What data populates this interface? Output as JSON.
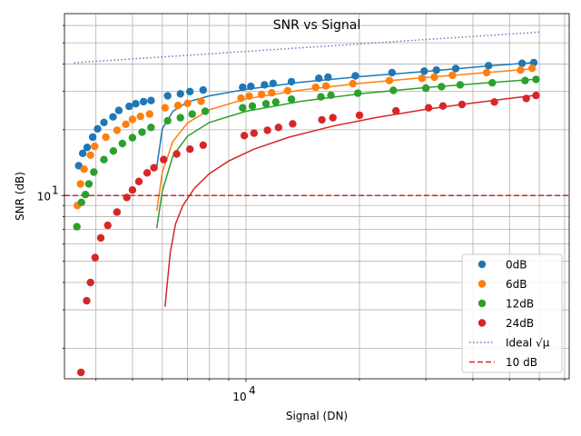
{
  "chart_data": {
    "type": "scatter",
    "title": "SNR vs Signal",
    "xlabel": "Signal (DN)",
    "ylabel": "SNR (dB)",
    "x_scale": "log",
    "y_scale": "log",
    "xlim": [
      3300,
      72000
    ],
    "ylim": [
      1.45,
      68
    ],
    "grid": true,
    "legend_placement": "lower-right",
    "x_tick_labels": [
      {
        "value": 10000,
        "label": "10",
        "exponent": "4"
      }
    ],
    "y_tick_labels": [
      {
        "value": 10,
        "label": "10",
        "exponent": "1"
      }
    ],
    "series": [
      {
        "name": "0dB",
        "color": "#1f77b4",
        "points": [
          [
            3600,
            13.7
          ],
          [
            3690,
            15.6
          ],
          [
            3790,
            16.6
          ],
          [
            3920,
            18.5
          ],
          [
            4040,
            20.2
          ],
          [
            4200,
            21.6
          ],
          [
            4440,
            22.9
          ],
          [
            4600,
            24.5
          ],
          [
            4900,
            25.6
          ],
          [
            5100,
            26.3
          ],
          [
            5350,
            26.9
          ],
          [
            5600,
            27.2
          ],
          [
            6200,
            28.6
          ],
          [
            6700,
            29.2
          ],
          [
            7100,
            29.9
          ],
          [
            7700,
            30.4
          ],
          [
            9800,
            31.3
          ],
          [
            10300,
            31.6
          ],
          [
            11200,
            32.1
          ],
          [
            11800,
            32.6
          ],
          [
            13200,
            33.2
          ],
          [
            15600,
            34.4
          ],
          [
            16500,
            34.8
          ],
          [
            19500,
            35.3
          ],
          [
            24400,
            36.5
          ],
          [
            29700,
            37.1
          ],
          [
            32000,
            37.5
          ],
          [
            36000,
            38.1
          ],
          [
            44000,
            39.3
          ],
          [
            54000,
            40.3
          ],
          [
            58000,
            40.6
          ]
        ],
        "fit": [
          [
            5800,
            13.5
          ],
          [
            6000,
            20.2
          ],
          [
            6400,
            24.3
          ],
          [
            7000,
            26.8
          ],
          [
            8000,
            28.6
          ],
          [
            10000,
            30.6
          ],
          [
            14000,
            33.0
          ],
          [
            20000,
            35.0
          ],
          [
            30000,
            37.0
          ],
          [
            45000,
            39.3
          ],
          [
            58000,
            40.6
          ]
        ]
      },
      {
        "name": "6dB",
        "color": "#ff7f0e",
        "points": [
          [
            3570,
            9.0
          ],
          [
            3640,
            11.3
          ],
          [
            3720,
            13.2
          ],
          [
            3870,
            15.3
          ],
          [
            3970,
            16.8
          ],
          [
            4250,
            18.5
          ],
          [
            4550,
            19.9
          ],
          [
            4800,
            21.2
          ],
          [
            5000,
            22.3
          ],
          [
            5250,
            23.0
          ],
          [
            5550,
            23.6
          ],
          [
            6100,
            25.2
          ],
          [
            6600,
            25.8
          ],
          [
            7000,
            26.4
          ],
          [
            7600,
            27.0
          ],
          [
            9700,
            27.9
          ],
          [
            10200,
            28.5
          ],
          [
            11000,
            29.0
          ],
          [
            11700,
            29.5
          ],
          [
            12900,
            30.2
          ],
          [
            15300,
            31.3
          ],
          [
            16300,
            31.7
          ],
          [
            19200,
            32.5
          ],
          [
            24000,
            33.6
          ],
          [
            29300,
            34.4
          ],
          [
            31600,
            34.8
          ],
          [
            35300,
            35.5
          ],
          [
            43500,
            36.5
          ],
          [
            53500,
            37.5
          ],
          [
            57400,
            38.2
          ]
        ],
        "fit": [
          [
            5800,
            8.5
          ],
          [
            6000,
            12.8
          ],
          [
            6400,
            17.7
          ],
          [
            7000,
            21.5
          ],
          [
            8000,
            24.7
          ],
          [
            10000,
            27.7
          ],
          [
            14000,
            30.4
          ],
          [
            20000,
            32.6
          ],
          [
            30000,
            34.7
          ],
          [
            45000,
            36.7
          ],
          [
            58000,
            38.0
          ]
        ]
      },
      {
        "name": "12dB",
        "color": "#2ca02c",
        "points": [
          [
            3560,
            7.2
          ],
          [
            3660,
            9.3
          ],
          [
            3750,
            10.1
          ],
          [
            3830,
            11.3
          ],
          [
            3950,
            12.8
          ],
          [
            4200,
            14.6
          ],
          [
            4450,
            16.0
          ],
          [
            4700,
            17.3
          ],
          [
            5000,
            18.4
          ],
          [
            5300,
            19.5
          ],
          [
            5600,
            20.5
          ],
          [
            6200,
            22.0
          ],
          [
            6700,
            22.7
          ],
          [
            7200,
            23.6
          ],
          [
            7800,
            24.3
          ],
          [
            9800,
            25.2
          ],
          [
            10400,
            25.7
          ],
          [
            11300,
            26.3
          ],
          [
            12000,
            26.8
          ],
          [
            13200,
            27.6
          ],
          [
            15800,
            28.3
          ],
          [
            16800,
            28.8
          ],
          [
            19800,
            29.4
          ],
          [
            24600,
            30.3
          ],
          [
            30000,
            31.0
          ],
          [
            33000,
            31.5
          ],
          [
            37000,
            32.1
          ],
          [
            45000,
            32.8
          ],
          [
            55000,
            33.6
          ],
          [
            58800,
            34.0
          ]
        ],
        "fit": [
          [
            5800,
            7.1
          ],
          [
            6000,
            10.5
          ],
          [
            6400,
            15.2
          ],
          [
            7000,
            18.7
          ],
          [
            8000,
            21.6
          ],
          [
            10000,
            24.3
          ],
          [
            14000,
            27.0
          ],
          [
            20000,
            29.2
          ],
          [
            30000,
            31.2
          ],
          [
            45000,
            32.9
          ],
          [
            58000,
            34.0
          ]
        ]
      },
      {
        "name": "24dB",
        "color": "#d62728",
        "points": [
          [
            3650,
            1.55
          ],
          [
            3780,
            3.3
          ],
          [
            3870,
            4.0
          ],
          [
            3980,
            5.2
          ],
          [
            4120,
            6.4
          ],
          [
            4300,
            7.3
          ],
          [
            4550,
            8.4
          ],
          [
            4830,
            9.8
          ],
          [
            5000,
            10.6
          ],
          [
            5200,
            11.6
          ],
          [
            5470,
            12.7
          ],
          [
            5700,
            13.4
          ],
          [
            6050,
            14.6
          ],
          [
            6550,
            15.5
          ],
          [
            7100,
            16.3
          ],
          [
            7700,
            17.0
          ],
          [
            9900,
            18.8
          ],
          [
            10500,
            19.3
          ],
          [
            11400,
            19.9
          ],
          [
            12200,
            20.5
          ],
          [
            13300,
            21.3
          ],
          [
            15900,
            22.2
          ],
          [
            17000,
            22.7
          ],
          [
            20000,
            23.3
          ],
          [
            25000,
            24.4
          ],
          [
            30500,
            25.2
          ],
          [
            33300,
            25.7
          ],
          [
            37400,
            26.1
          ],
          [
            45600,
            26.8
          ],
          [
            55400,
            27.8
          ],
          [
            58800,
            28.7
          ]
        ],
        "fit": [
          [
            6100,
            3.1
          ],
          [
            6300,
            5.5
          ],
          [
            6500,
            7.4
          ],
          [
            6800,
            9.0
          ],
          [
            7300,
            10.8
          ],
          [
            8000,
            12.6
          ],
          [
            9000,
            14.4
          ],
          [
            10500,
            16.3
          ],
          [
            13000,
            18.5
          ],
          [
            17000,
            20.8
          ],
          [
            22000,
            22.7
          ],
          [
            30000,
            24.8
          ],
          [
            40000,
            26.5
          ],
          [
            50000,
            27.8
          ],
          [
            58000,
            28.7
          ]
        ]
      }
    ],
    "reference_lines": [
      {
        "name": "Ideal √μ",
        "color": "#9467bd",
        "style": "dotted",
        "points": [
          [
            3500,
            40.5
          ],
          [
            60000,
            56.0
          ]
        ]
      },
      {
        "name": "10 dB",
        "color": "#d62728",
        "style": "dashed",
        "y": 10
      }
    ]
  }
}
